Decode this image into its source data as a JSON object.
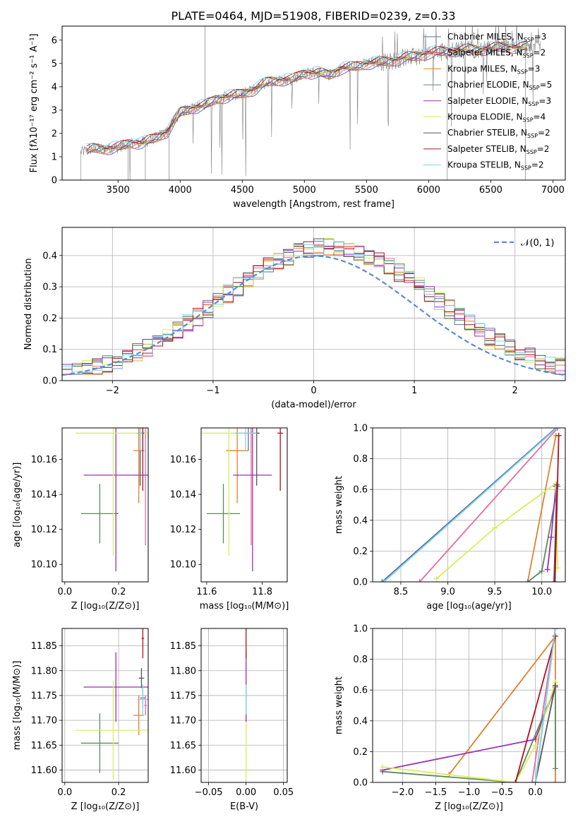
{
  "colors": {
    "Chabrier MILES": "#5a6f9e",
    "Salpeter MILES": "#e86aa0",
    "Kroupa MILES": "#e0802f",
    "Chabrier ELODIE": "#5e8a5e",
    "Salpeter ELODIE": "#9a2fb8",
    "Kroupa ELODIE": "#d8ee5a",
    "Chabrier STELIB": "#555555",
    "Salpeter STELIB": "#b01020",
    "Kroupa STELIB": "#7fd5ee",
    "normal": "#5b8ad4"
  },
  "chart_data": [
    {
      "id": "spectrum",
      "type": "line",
      "title": "PLATE=0464, MJD=51908, FIBERID=0239, z=0.33",
      "xlabel": "wavelength [Angstrom, rest frame]",
      "ylabel": "Flux [fλ10⁻¹⁷ erg cm⁻² s⁻¹ A⁻¹]",
      "xlim": [
        3050,
        7100
      ],
      "ylim": [
        0,
        6.6
      ],
      "xticks": [
        "3500",
        "4000",
        "4500",
        "5000",
        "5500",
        "6000",
        "6500",
        "7000"
      ],
      "yticks": [
        "0",
        "1",
        "2",
        "3",
        "4",
        "5",
        "6"
      ],
      "legend_position": "upper-right",
      "legend": [
        {
          "label": "Chabrier MILES, N",
          "sub": "SSP",
          "suffix": "=3"
        },
        {
          "label": "Salpeter MILES, N",
          "sub": "SSP",
          "suffix": "=2"
        },
        {
          "label": "Kroupa MILES, N",
          "sub": "SSP",
          "suffix": "=3"
        },
        {
          "label": "Chabrier ELODIE, N",
          "sub": "SSP",
          "suffix": "=5"
        },
        {
          "label": "Salpeter ELODIE, N",
          "sub": "SSP",
          "suffix": "=3"
        },
        {
          "label": "Kroupa ELODIE, N",
          "sub": "SSP",
          "suffix": "=4"
        },
        {
          "label": "Chabrier STELIB, N",
          "sub": "SSP",
          "suffix": "=2"
        },
        {
          "label": "Salpeter STELIB, N",
          "sub": "SSP",
          "suffix": "=2"
        },
        {
          "label": "Kroupa STELIB, N",
          "sub": "SSP",
          "suffix": "=2"
        }
      ],
      "continuum_x": [
        3200,
        3300,
        3400,
        3500,
        3600,
        3700,
        3800,
        3900,
        4000,
        4100,
        4200,
        4300,
        4400,
        4500,
        4600,
        4700,
        4800,
        4900,
        5000,
        5100,
        5200,
        5300,
        5400,
        5500,
        5600,
        5700,
        5800,
        5900,
        6000,
        6100,
        6200,
        6300,
        6400,
        6500,
        6600,
        6700,
        6800,
        6900,
        7000
      ],
      "continuum_y": [
        1.2,
        1.35,
        1.35,
        1.4,
        1.6,
        1.6,
        1.8,
        2.1,
        2.9,
        3.1,
        3.2,
        3.5,
        3.6,
        3.7,
        3.9,
        4.2,
        4.3,
        4.3,
        4.6,
        4.6,
        4.5,
        4.8,
        4.85,
        5.0,
        5.05,
        5.1,
        5.25,
        5.3,
        5.45,
        5.5,
        5.55,
        5.6,
        5.6,
        5.65,
        5.7,
        5.7,
        5.7,
        5.75,
        5.75
      ]
    },
    {
      "id": "residuals",
      "type": "line",
      "xlabel": "(data-model)/error",
      "ylabel": "Normed distribution",
      "xlim": [
        -2.5,
        2.5
      ],
      "ylim": [
        0,
        0.49
      ],
      "xticks": [
        "−2",
        "−1",
        "0",
        "1",
        "2"
      ],
      "yticks": [
        "0.0",
        "0.1",
        "0.2",
        "0.3",
        "0.4"
      ],
      "legend_position": "upper-right",
      "legend": [
        {
          "label": "𝒩(0, 1)"
        }
      ],
      "grid": true
    },
    {
      "id": "age-vs-Z",
      "type": "scatter",
      "xlabel": "Z [log₁₀(Z/Z⊙)]",
      "ylabel": "age  [log₁₀(age/yr)]",
      "xlim": [
        -0.01,
        0.31
      ],
      "ylim": [
        10.09,
        10.178
      ],
      "xticks": [
        "0.0",
        "0.2"
      ],
      "yticks": [
        "10.10",
        "10.12",
        "10.14",
        "10.16"
      ],
      "points": [
        {
          "series": "Chabrier MILES",
          "x": 0.29,
          "y": 10.175,
          "xerr": 0.01,
          "yerr": 0.01
        },
        {
          "series": "Salpeter MILES",
          "x": 0.3,
          "y": 10.175,
          "xerr": 0.005,
          "yerr": 0.064
        },
        {
          "series": "Kroupa MILES",
          "x": 0.275,
          "y": 10.165,
          "xerr": 0.02,
          "yerr": 0.03
        },
        {
          "series": "Chabrier ELODIE",
          "x": 0.13,
          "y": 10.129,
          "xerr": 0.07,
          "yerr": 0.017
        },
        {
          "series": "Salpeter ELODIE",
          "x": 0.19,
          "y": 10.151,
          "xerr": 0.12,
          "yerr": 0.055
        },
        {
          "series": "Kroupa ELODIE",
          "x": 0.18,
          "y": 10.175,
          "xerr": 0.14,
          "yerr": 0.07
        },
        {
          "series": "Chabrier STELIB",
          "x": 0.28,
          "y": 10.175,
          "xerr": 0.01,
          "yerr": 0.03
        },
        {
          "series": "Salpeter STELIB",
          "x": 0.29,
          "y": 10.175,
          "xerr": 0.005,
          "yerr": 0.033
        },
        {
          "series": "Kroupa STELIB",
          "x": 0.28,
          "y": 10.175,
          "xerr": 0.01,
          "yerr": 0.01
        }
      ]
    },
    {
      "id": "age-vs-mass",
      "type": "scatter",
      "xlabel": "mass [log₁₀(M/M⊙)]",
      "ylabel": "",
      "xlim": [
        11.58,
        11.89
      ],
      "ylim": [
        10.09,
        10.178
      ],
      "xticks": [
        "11.6",
        "11.8"
      ],
      "yticks": [
        "10.10",
        "10.12",
        "10.14",
        "10.16"
      ],
      "points": [
        {
          "series": "Chabrier MILES",
          "x": 11.75,
          "y": 10.175,
          "xerr": 0.01,
          "yerr": 0.01
        },
        {
          "series": "Salpeter MILES",
          "x": 11.76,
          "y": 10.175,
          "xerr": 0.03,
          "yerr": 0.064
        },
        {
          "series": "Kroupa MILES",
          "x": 11.71,
          "y": 10.165,
          "xerr": 0.04,
          "yerr": 0.03
        },
        {
          "series": "Chabrier ELODIE",
          "x": 11.66,
          "y": 10.129,
          "xerr": 0.06,
          "yerr": 0.017
        },
        {
          "series": "Salpeter ELODIE",
          "x": 11.765,
          "y": 10.151,
          "xerr": 0.07,
          "yerr": 0.055
        },
        {
          "series": "Kroupa ELODIE",
          "x": 11.68,
          "y": 10.175,
          "xerr": 0.1,
          "yerr": 0.07
        },
        {
          "series": "Chabrier STELIB",
          "x": 11.78,
          "y": 10.175,
          "xerr": 0.01,
          "yerr": 0.03
        },
        {
          "series": "Salpeter STELIB",
          "x": 11.865,
          "y": 10.175,
          "xerr": 0.01,
          "yerr": 0.033
        },
        {
          "series": "Kroupa STELIB",
          "x": 11.74,
          "y": 10.175,
          "xerr": 0.04,
          "yerr": 0.01
        }
      ]
    },
    {
      "id": "mass-weight-vs-age",
      "type": "line",
      "xlabel": "age  [log₁₀(age/yr)]",
      "ylabel": "mass weight",
      "xlim": [
        8.2,
        10.25
      ],
      "ylim": [
        0,
        1.0
      ],
      "xticks": [
        "8.5",
        "9.0",
        "9.5",
        "10.0"
      ],
      "yticks": [
        "0.0",
        "0.2",
        "0.4",
        "0.6",
        "0.8",
        "1.0"
      ],
      "grid": true,
      "series": [
        {
          "name": "Chabrier MILES",
          "x": [
            8.3,
            10.15
          ],
          "y": [
            0.0,
            1.0
          ]
        },
        {
          "name": "Salpeter MILES",
          "x": [
            8.7,
            10.17
          ],
          "y": [
            0.0,
            1.0
          ]
        },
        {
          "name": "Kroupa MILES",
          "x": [
            9.85,
            10.15,
            10.18
          ],
          "y": [
            0.0,
            0.95,
            0.95
          ]
        },
        {
          "name": "Chabrier ELODIE",
          "x": [
            9.85,
            10.0,
            10.17
          ],
          "y": [
            0.0,
            0.07,
            0.62
          ]
        },
        {
          "name": "Salpeter ELODIE",
          "x": [
            10.06,
            10.1,
            10.15
          ],
          "y": [
            0.08,
            0.29,
            0.62
          ]
        },
        {
          "name": "Kroupa ELODIE",
          "x": [
            8.88,
            9.5,
            10.15,
            10.17
          ],
          "y": [
            0.02,
            0.35,
            0.64,
            0.09
          ]
        },
        {
          "name": "Chabrier STELIB",
          "x": [
            10.13,
            10.16
          ],
          "y": [
            0.0,
            0.63
          ]
        },
        {
          "name": "Salpeter STELIB",
          "x": [
            10.14,
            10.18
          ],
          "y": [
            0.0,
            0.95
          ]
        },
        {
          "name": "Kroupa STELIB",
          "x": [
            8.32,
            10.16
          ],
          "y": [
            0.0,
            1.0
          ]
        }
      ]
    },
    {
      "id": "mass-vs-Z",
      "type": "scatter",
      "xlabel": "Z [log₁₀(Z/Z⊙)]",
      "ylabel": "mass [log₁₀(M/M⊙)]",
      "xlim": [
        -0.01,
        0.31
      ],
      "ylim": [
        11.575,
        11.885
      ],
      "xticks": [
        "0.0",
        "0.2"
      ],
      "yticks": [
        "11.60",
        "11.65",
        "11.70",
        "11.75",
        "11.80",
        "11.85"
      ],
      "points": [
        {
          "series": "Chabrier MILES",
          "x": 0.29,
          "y": 11.745,
          "xerr": 0.01,
          "yerr": 0.02
        },
        {
          "series": "Salpeter MILES",
          "x": 0.3,
          "y": 11.73,
          "xerr": 0.005,
          "yerr": 0.02
        },
        {
          "series": "Kroupa MILES",
          "x": 0.275,
          "y": 11.71,
          "xerr": 0.02,
          "yerr": 0.04
        },
        {
          "series": "Chabrier ELODIE",
          "x": 0.13,
          "y": 11.654,
          "xerr": 0.07,
          "yerr": 0.06
        },
        {
          "series": "Salpeter ELODIE",
          "x": 0.19,
          "y": 11.767,
          "xerr": 0.12,
          "yerr": 0.07
        },
        {
          "series": "Kroupa ELODIE",
          "x": 0.18,
          "y": 11.68,
          "xerr": 0.14,
          "yerr": 0.1
        },
        {
          "series": "Chabrier STELIB",
          "x": 0.285,
          "y": 11.785,
          "xerr": 0.01,
          "yerr": 0.02
        },
        {
          "series": "Salpeter STELIB",
          "x": 0.29,
          "y": 11.865,
          "xerr": 0.005,
          "yerr": 0.04
        },
        {
          "series": "Kroupa STELIB",
          "x": 0.29,
          "y": 11.742,
          "xerr": 0.02,
          "yerr": 0.03
        }
      ]
    },
    {
      "id": "mass-vs-ebv",
      "type": "scatter",
      "xlabel": "E(B-V)",
      "ylabel": "",
      "xlim": [
        -0.06,
        0.055
      ],
      "ylim": [
        11.575,
        11.885
      ],
      "xticks": [
        "−0.05",
        "0.00",
        "0.05"
      ],
      "yticks": [
        "11.60",
        "11.65",
        "11.70",
        "11.75",
        "11.80",
        "11.85"
      ],
      "points": [
        {
          "series": "Kroupa ELODIE",
          "x": 0.0,
          "y": 11.68,
          "xerr": 0.0,
          "yerr": 0.1
        },
        {
          "series": "Salpeter ELODIE",
          "x": 0.0,
          "y": 11.767,
          "xerr": 0.0,
          "yerr": 0.07
        },
        {
          "series": "Kroupa STELIB",
          "x": 0.0,
          "y": 11.742,
          "xerr": 0.0,
          "yerr": 0.03
        },
        {
          "series": "Salpeter STELIB",
          "x": 0.0,
          "y": 11.865,
          "xerr": 0.0,
          "yerr": 0.04
        }
      ]
    },
    {
      "id": "mass-weight-vs-Z",
      "type": "line",
      "xlabel": "Z [log₁₀(Z/Z⊙)]",
      "ylabel": "mass weight",
      "xlim": [
        -2.45,
        0.45
      ],
      "ylim": [
        0,
        1.0
      ],
      "xticks": [
        "−2.0",
        "−1.5",
        "−1.0",
        "−0.5",
        "0.0"
      ],
      "yticks": [
        "0.0",
        "0.2",
        "0.4",
        "0.6",
        "0.8",
        "1.0"
      ],
      "grid": true,
      "series": [
        {
          "name": "Chabrier MILES",
          "x": [
            0.0,
            0.3
          ],
          "y": [
            0.0,
            1.0
          ]
        },
        {
          "name": "Salpeter MILES",
          "x": [
            -0.05,
            0.3
          ],
          "y": [
            0.0,
            1.0
          ]
        },
        {
          "name": "Kroupa MILES",
          "x": [
            -1.3,
            0.3,
            0.3
          ],
          "y": [
            0.05,
            0.95,
            0.0
          ]
        },
        {
          "name": "Chabrier ELODIE",
          "x": [
            -2.3,
            -0.3,
            0.3,
            0.3
          ],
          "y": [
            0.07,
            0.0,
            0.62,
            0.09
          ]
        },
        {
          "name": "Salpeter ELODIE",
          "x": [
            -2.3,
            0.0,
            0.3
          ],
          "y": [
            0.08,
            0.28,
            0.62
          ]
        },
        {
          "name": "Kroupa ELODIE",
          "x": [
            -2.3,
            -0.3,
            0.0,
            0.3
          ],
          "y": [
            0.1,
            0.0,
            0.24,
            0.65
          ]
        },
        {
          "name": "Chabrier STELIB",
          "x": [
            0.0,
            0.3
          ],
          "y": [
            0.0,
            0.63
          ]
        },
        {
          "name": "Salpeter STELIB",
          "x": [
            -0.3,
            0.3
          ],
          "y": [
            0.0,
            0.95
          ]
        },
        {
          "name": "Kroupa STELIB",
          "x": [
            0.0,
            0.3
          ],
          "y": [
            0.0,
            1.0
          ]
        }
      ]
    }
  ]
}
